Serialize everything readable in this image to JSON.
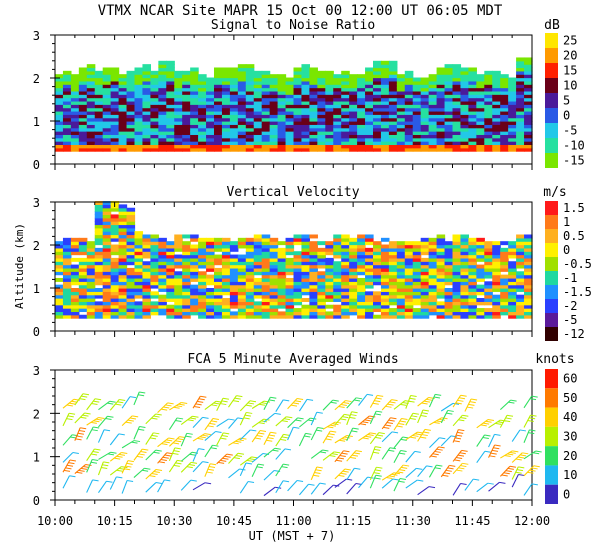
{
  "header": {
    "title": "VTMX  NCAR Site  MAPR 15 Oct 00  12:00 UT  06:05  MDT"
  },
  "x_axis": {
    "label": "UT  (MST + 7)",
    "ticks": [
      "10:00",
      "10:15",
      "10:30",
      "10:45",
      "11:00",
      "11:15",
      "11:30",
      "11:45",
      "12:00"
    ]
  },
  "y_axis": {
    "label": "Altitude (km)"
  },
  "chart_data": [
    {
      "type": "heatmap",
      "title": "Signal to Noise Ratio",
      "units": "dB",
      "x_range": [
        "10:00",
        "12:00"
      ],
      "ylim": [
        0,
        3
      ],
      "y_ticks": [
        "0",
        "1",
        "2",
        "3"
      ],
      "colorbar": {
        "labels": [
          "25",
          "20",
          "15",
          "10",
          "5",
          "0",
          "-5",
          "-10",
          "-15"
        ],
        "colors": [
          "#ffe600",
          "#ff9a00",
          "#ff2000",
          "#6a0018",
          "#4a1a9a",
          "#2a5ae6",
          "#22c8e8",
          "#26e0a0",
          "#7ae600"
        ]
      },
      "data_ceiling_km": [
        2.1,
        2.2,
        2.15,
        2.05,
        2.2,
        2.3,
        2.1,
        2.0,
        2.15,
        2.25,
        2.1,
        2.0,
        2.2,
        2.1,
        2.05,
        2.15,
        2.3,
        2.1,
        2.0,
        2.2,
        2.25,
        2.1,
        2.05,
        2.4
      ]
    },
    {
      "type": "heatmap",
      "title": "Vertical Velocity",
      "units": "m/s",
      "x_range": [
        "10:00",
        "12:00"
      ],
      "ylim": [
        0,
        3
      ],
      "y_ticks": [
        "0",
        "1",
        "2",
        "3"
      ],
      "colorbar": {
        "labels": [
          "1.5",
          "1",
          "0.5",
          "0",
          "-0.5",
          "-1",
          "-1.5",
          "-2",
          "-5",
          "-12"
        ],
        "colors": [
          "#ff1a1a",
          "#ff7a1a",
          "#ffb020",
          "#fff000",
          "#a0e000",
          "#20d8a0",
          "#2090ff",
          "#2a40ff",
          "#5a1a9a",
          "#300000"
        ]
      },
      "data_ceiling_km": [
        2.1,
        2.1,
        3.0,
        2.9,
        2.2,
        2.1,
        2.15,
        2.2,
        2.1,
        2.15,
        2.2,
        2.1,
        2.2,
        2.1,
        2.15,
        2.2,
        2.1,
        2.0,
        2.1,
        2.15,
        2.2,
        2.1,
        2.0,
        2.2
      ]
    },
    {
      "type": "scatter",
      "title": "FCA 5 Minute Averaged Winds",
      "units": "knots",
      "x_range": [
        "10:00",
        "12:00"
      ],
      "ylim": [
        0,
        3
      ],
      "y_ticks": [
        "0",
        "1",
        "2",
        "3"
      ],
      "colorbar": {
        "labels": [
          "60",
          "50",
          "40",
          "30",
          "20",
          "10",
          "0"
        ],
        "colors": [
          "#ff1a00",
          "#ff7a00",
          "#ffd000",
          "#b8f000",
          "#30e060",
          "#20b8f0",
          "#3a2ac0"
        ]
      },
      "altitudes_km": [
        0.2,
        0.55,
        0.9,
        1.3,
        1.7,
        2.1
      ]
    }
  ]
}
